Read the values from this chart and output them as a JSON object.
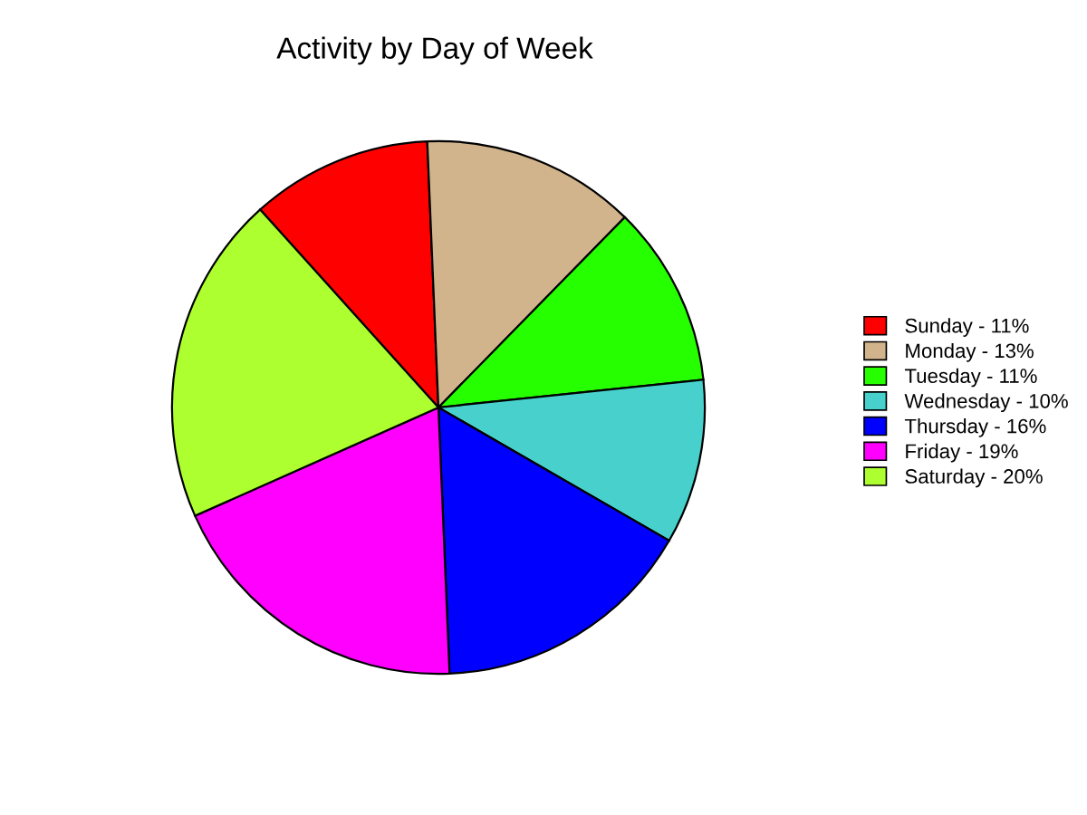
{
  "chart_data": {
    "type": "pie",
    "title": "Activity by Day of Week",
    "categories": [
      "Sunday - 11%",
      "Monday - 13%",
      "Tuesday - 11%",
      "Wednesday - 10%",
      "Thursday - 16%",
      "Friday - 19%",
      "Saturday - 20%"
    ],
    "values": [
      11,
      13,
      11,
      10,
      16,
      19,
      20
    ],
    "colors": [
      "#ff0000",
      "#d2b48c",
      "#26ff00",
      "#48d1cc",
      "#0000ff",
      "#ff00ff",
      "#adff2f"
    ],
    "legend": "right"
  }
}
